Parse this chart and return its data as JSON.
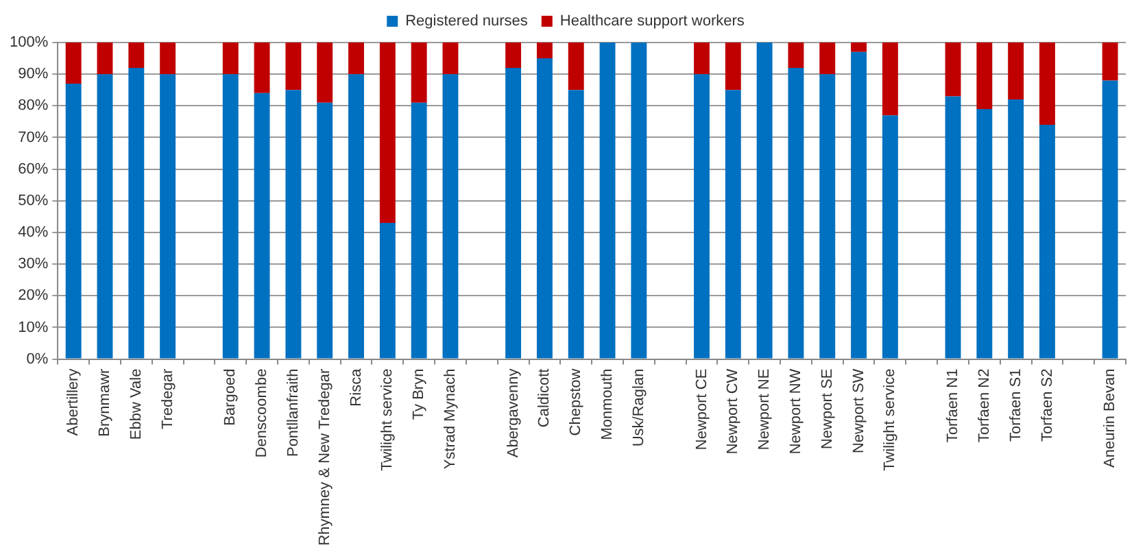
{
  "chart_data": {
    "type": "bar",
    "stacked": true,
    "categories": [
      "Abertillery",
      "Brynmawr",
      "Ebbw Vale",
      "Tredegar",
      null,
      "Bargoed",
      "Denscoombe",
      "Pontllanfraith",
      "Rhymney & New Tredegar",
      "Risca",
      "Twilight service",
      "Ty Bryn",
      "Ystrad Mynach",
      null,
      "Abergavenny",
      "Caldicott",
      "Chepstow",
      "Monmouth",
      "Usk/Raglan",
      null,
      "Newport CE",
      "Newport CW",
      "Newport NE",
      "Newport NW",
      "Newport SE",
      "Newport SW",
      "Twilight service",
      null,
      "Torfaen N1",
      "Torfaen N2",
      "Torfaen S1",
      "Torfaen S2",
      null,
      "Aneurin Bevan"
    ],
    "series": [
      {
        "name": "Registered nurses",
        "color": "#0070c0",
        "values": [
          87,
          90,
          92,
          90,
          null,
          90,
          84,
          85,
          81,
          90,
          43,
          81,
          90,
          null,
          92,
          95,
          85,
          100,
          100,
          null,
          90,
          85,
          100,
          92,
          90,
          97,
          77,
          null,
          83,
          79,
          82,
          74,
          null,
          88
        ]
      },
      {
        "name": "Healthcare support workers",
        "color": "#c00000",
        "values": [
          13,
          10,
          8,
          10,
          null,
          10,
          16,
          15,
          19,
          10,
          57,
          19,
          10,
          null,
          8,
          5,
          15,
          0,
          0,
          null,
          10,
          15,
          0,
          8,
          10,
          3,
          23,
          null,
          17,
          21,
          18,
          26,
          null,
          12
        ]
      }
    ],
    "ylim": [
      0,
      100
    ],
    "yticks": [
      {
        "value": 0,
        "label": "0%"
      },
      {
        "value": 10,
        "label": "10%"
      },
      {
        "value": 20,
        "label": "20%"
      },
      {
        "value": 30,
        "label": "30%"
      },
      {
        "value": 40,
        "label": "40%"
      },
      {
        "value": 50,
        "label": "50%"
      },
      {
        "value": 60,
        "label": "60%"
      },
      {
        "value": 70,
        "label": "70%"
      },
      {
        "value": 80,
        "label": "80%"
      },
      {
        "value": 90,
        "label": "90%"
      },
      {
        "value": 100,
        "label": "100%"
      }
    ],
    "grid": "y",
    "legend": "top"
  }
}
